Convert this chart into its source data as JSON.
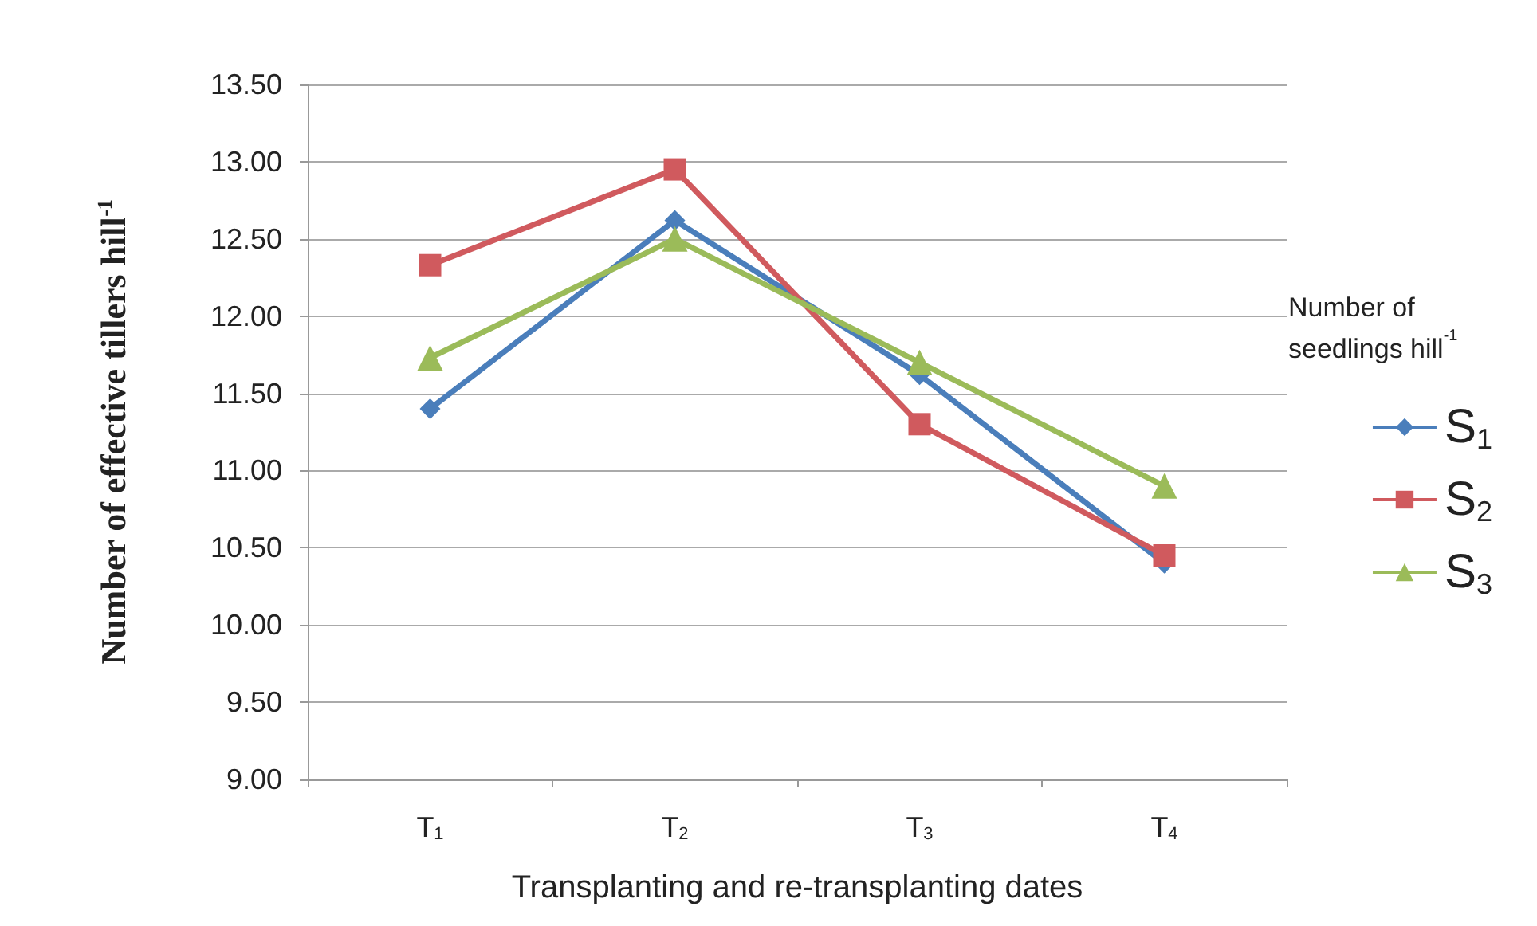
{
  "chart_data": {
    "type": "line",
    "xlabel": "Transplanting and re-transplanting dates",
    "ylabel": "Number of effective tillers hill$^{-1}$",
    "legend_title": "Number of seedlings hill$^{-1}$",
    "categories": [
      "T$_{1}$",
      "T$_{2}$",
      "T$_{3}$",
      "T$_{4}$"
    ],
    "series": [
      {
        "name": "S$_{1}$",
        "color": "#4a7ebb",
        "marker": "diamond",
        "values": [
          11.4,
          12.62,
          11.62,
          10.4
        ]
      },
      {
        "name": "S$_{2}$",
        "color": "#d05a5e",
        "marker": "square",
        "values": [
          12.33,
          12.95,
          11.3,
          10.45
        ]
      },
      {
        "name": "S$_{3}$",
        "color": "#9bbb59",
        "marker": "triangle",
        "values": [
          11.73,
          12.5,
          11.7,
          10.9
        ]
      }
    ],
    "ylim": [
      9,
      13.5
    ],
    "yticks": [
      {
        "value": 9,
        "label": "9.00"
      },
      {
        "value": 9.5,
        "label": "9.50"
      },
      {
        "value": 10,
        "label": "10.00"
      },
      {
        "value": 10.5,
        "label": "10.50"
      },
      {
        "value": 11,
        "label": "11.00"
      },
      {
        "value": 11.5,
        "label": "11.50"
      },
      {
        "value": 12,
        "label": "12.00"
      },
      {
        "value": 12.5,
        "label": "12.50"
      },
      {
        "value": 13,
        "label": "13.00"
      },
      {
        "value": 13.5,
        "label": "13.50"
      }
    ],
    "grid": "y",
    "legend": "right"
  }
}
